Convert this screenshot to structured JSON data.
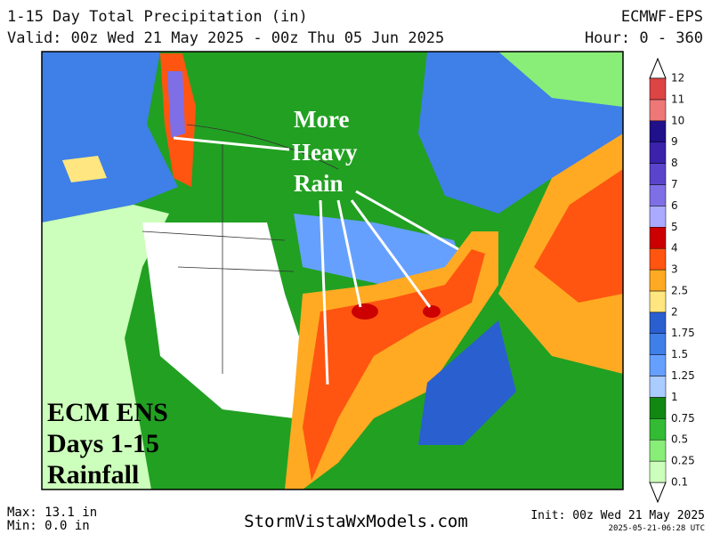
{
  "header": {
    "title": "1-15 Day Total Precipitation (in)",
    "model": "ECMWF-EPS",
    "valid": "Valid: 00z Wed 21 May 2025 - 00z Thu 05 Jun 2025",
    "hours": "Hour: 0 - 360"
  },
  "annotations": {
    "arrow_label": [
      "More",
      "Heavy",
      "Rain"
    ],
    "corner_label": [
      "ECM ENS",
      "Days 1-15",
      "Rainfall"
    ]
  },
  "colorbar": {
    "levels": [
      0.1,
      0.25,
      0.5,
      0.75,
      1,
      1.25,
      1.5,
      1.75,
      2,
      2.5,
      3,
      4,
      5,
      6,
      7,
      8,
      9,
      10,
      11,
      12
    ],
    "colors": [
      "#ccffbb",
      "#88ee77",
      "#33bb33",
      "#118811",
      "#aaccff",
      "#66a0ff",
      "#3f7fe8",
      "#2a5fd0",
      "#ffe680",
      "#ffaa22",
      "#ff5511",
      "#cc0000",
      "#aaaaff",
      "#7f6fe6",
      "#5a44cc",
      "#3a22aa",
      "#20108a",
      "#ee7777",
      "#dd4444",
      "#aa2222"
    ]
  },
  "footer": {
    "max": "Max: 13.1 in",
    "min": "Min: 0.0 in",
    "site": "StormVistaWxModels.com",
    "init": "Init: 00z Wed 21 May 2025",
    "stamp": "2025-05-21-06:28 UTC"
  }
}
